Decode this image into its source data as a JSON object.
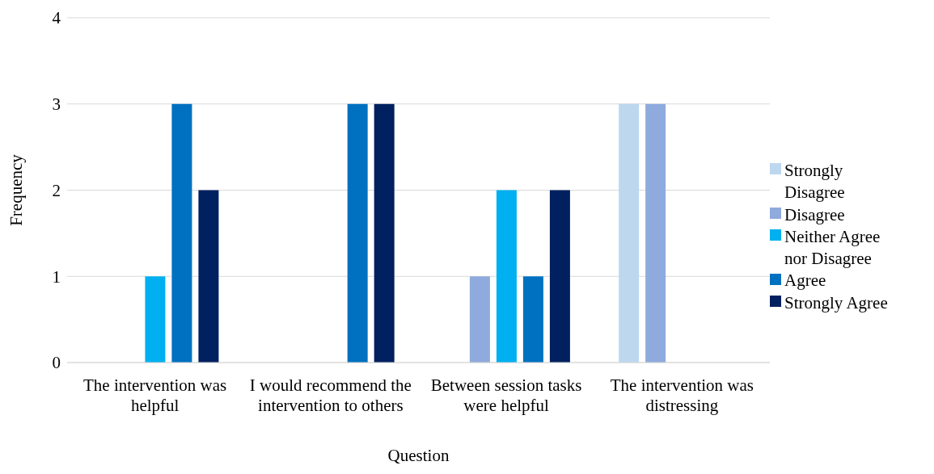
{
  "chart_data": {
    "type": "bar",
    "xlabel": "Question",
    "ylabel": "Frequency",
    "categories": [
      "The intervention was helpful",
      "I would recommend the intervention to others",
      "Between session tasks were helpful",
      "The intervention was distressing"
    ],
    "series": [
      {
        "name": "Strongly Disagree",
        "color": "#bdd7ee",
        "values": [
          0,
          0,
          0,
          3
        ]
      },
      {
        "name": "Disagree",
        "color": "#8faadc",
        "values": [
          0,
          0,
          1,
          3
        ]
      },
      {
        "name": "Neither Agree nor Disagree",
        "color": "#00b0f0",
        "values": [
          1,
          0,
          2,
          0
        ]
      },
      {
        "name": "Agree",
        "color": "#0070c0",
        "values": [
          3,
          3,
          1,
          0
        ]
      },
      {
        "name": "Strongly Agree",
        "color": "#002060",
        "values": [
          2,
          3,
          2,
          0
        ]
      }
    ],
    "ylim": [
      0,
      4
    ],
    "yticks": [
      0,
      1,
      2,
      3,
      4
    ],
    "grid": "y",
    "legend": "right"
  }
}
